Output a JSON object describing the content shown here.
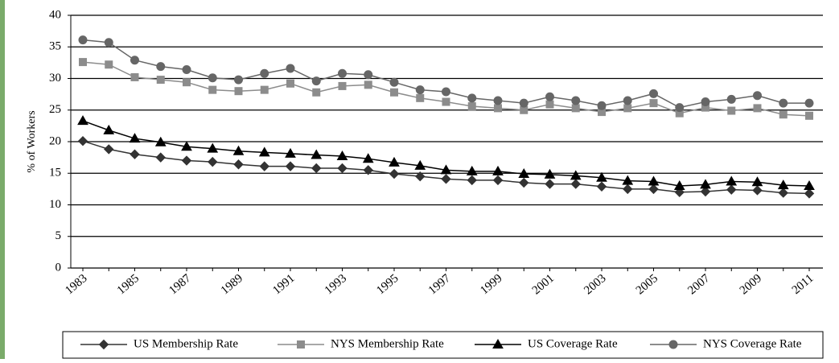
{
  "chart_data": {
    "type": "line",
    "y_label": "% of Workers",
    "categories": [
      "1983",
      null,
      "1985",
      null,
      "1987",
      null,
      "1989",
      null,
      "1991",
      null,
      "1993",
      null,
      "1995",
      null,
      "1997",
      null,
      "1999",
      null,
      "2001",
      null,
      "2003",
      null,
      "2005",
      null,
      "2007",
      null,
      "2009",
      null,
      "2011"
    ],
    "series": [
      {
        "name": "US Membership Rate",
        "color": "#333333",
        "marker": "diamond",
        "values": [
          20.1,
          18.8,
          18.0,
          17.5,
          17.0,
          16.8,
          16.4,
          16.1,
          16.1,
          15.8,
          15.8,
          15.5,
          14.9,
          14.5,
          14.1,
          13.9,
          13.9,
          13.5,
          13.3,
          13.3,
          12.9,
          12.5,
          12.5,
          12.0,
          12.1,
          12.4,
          12.3,
          11.9,
          11.8
        ]
      },
      {
        "name": "NYS Membership Rate",
        "color": "#8c8c8c",
        "marker": "square",
        "values": [
          32.6,
          32.2,
          30.2,
          29.8,
          29.4,
          28.2,
          28.0,
          28.2,
          29.2,
          27.8,
          28.8,
          29.0,
          27.8,
          26.9,
          26.3,
          25.6,
          25.3,
          25.0,
          25.9,
          25.3,
          24.7,
          25.3,
          26.1,
          24.5,
          25.4,
          24.9,
          25.3,
          24.3,
          24.1
        ]
      },
      {
        "name": "US Coverage Rate",
        "color": "#000000",
        "marker": "triangle",
        "values": [
          23.3,
          21.8,
          20.5,
          19.9,
          19.2,
          18.9,
          18.5,
          18.3,
          18.1,
          17.9,
          17.7,
          17.3,
          16.7,
          16.2,
          15.5,
          15.3,
          15.3,
          14.9,
          14.8,
          14.6,
          14.3,
          13.8,
          13.7,
          13.0,
          13.2,
          13.7,
          13.6,
          13.1,
          13.0
        ]
      },
      {
        "name": "NYS Coverage Rate",
        "color": "#666666",
        "marker": "circle",
        "values": [
          36.1,
          35.7,
          32.9,
          31.9,
          31.4,
          30.1,
          29.8,
          30.8,
          31.6,
          29.6,
          30.8,
          30.6,
          29.4,
          28.2,
          27.9,
          26.9,
          26.5,
          26.1,
          27.1,
          26.5,
          25.7,
          26.5,
          27.6,
          25.4,
          26.3,
          26.7,
          27.3,
          26.1,
          26.1
        ]
      }
    ],
    "ylim": [
      0,
      40
    ],
    "yticks": [
      0,
      5,
      10,
      15,
      20,
      25,
      30,
      35,
      40
    ],
    "grid": true,
    "legend": "bottom"
  }
}
